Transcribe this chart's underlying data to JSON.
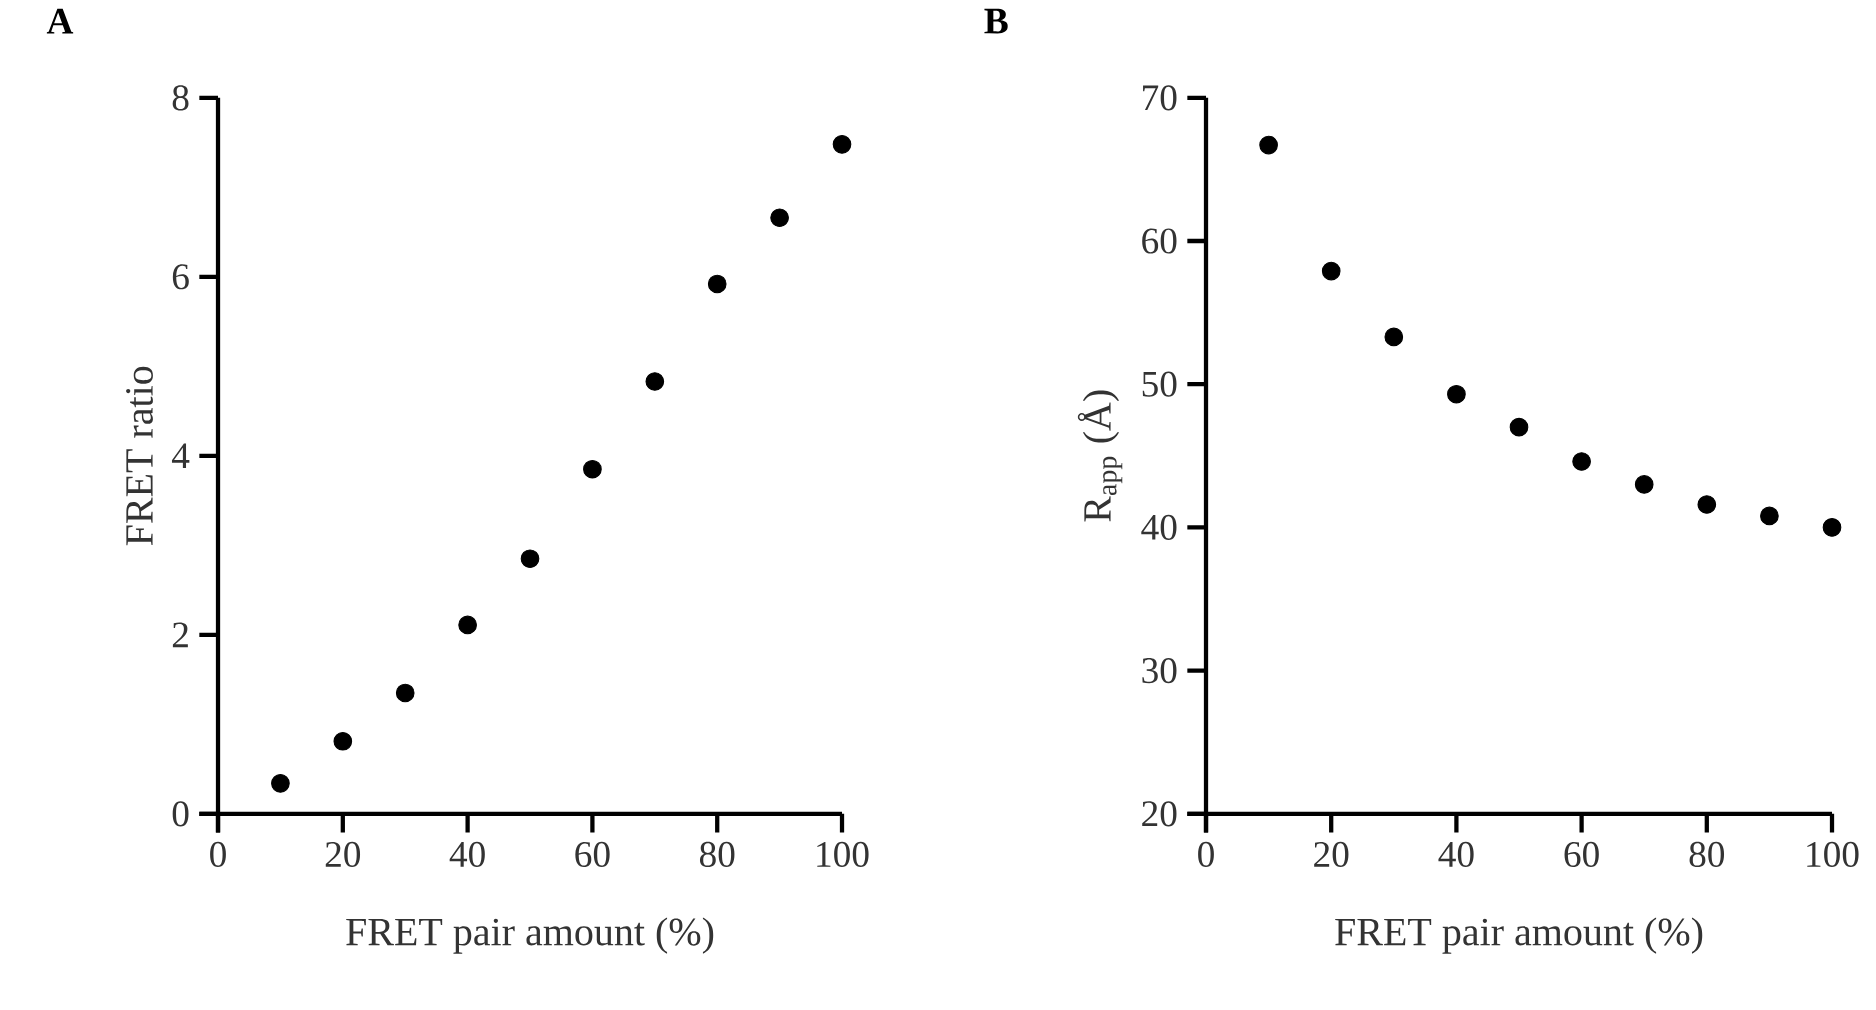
{
  "chart_data": [
    {
      "type": "scatter",
      "title": "**A**",
      "xlabel": "FRET pair amount (%)",
      "ylabel": "FRET ratio",
      "marker": "circle",
      "grid": false,
      "x": [
        10,
        20,
        30,
        40,
        50,
        60,
        70,
        80,
        90,
        100
      ],
      "series": [
        {
          "color": "#000000",
          "values": [
            0.34,
            0.81,
            1.35,
            2.11,
            2.85,
            3.85,
            4.83,
            5.92,
            6.66,
            7.48
          ]
        }
      ],
      "xlim": [
        0,
        100
      ],
      "xticks": [
        0,
        20,
        40,
        60,
        80,
        100
      ],
      "ylim": [
        0,
        8
      ],
      "yticks": [
        0,
        2,
        4,
        6,
        8
      ]
    },
    {
      "type": "scatter",
      "title": "**B**",
      "xlabel": "FRET pair amount (%)",
      "ylabel": "R$_{app}$ (Å)",
      "marker": "circle",
      "grid": false,
      "x": [
        10,
        20,
        30,
        40,
        50,
        60,
        70,
        80,
        90,
        100
      ],
      "series": [
        {
          "color": "#000000",
          "values": [
            66.7,
            57.9,
            53.3,
            49.3,
            47.0,
            44.6,
            43.0,
            41.6,
            40.8,
            40.0
          ]
        }
      ],
      "xlim": [
        0,
        100
      ],
      "xticks": [
        0,
        20,
        40,
        60,
        80,
        100
      ],
      "ylim": [
        20,
        70
      ],
      "yticks": [
        20,
        30,
        40,
        50,
        60,
        70
      ]
    }
  ]
}
